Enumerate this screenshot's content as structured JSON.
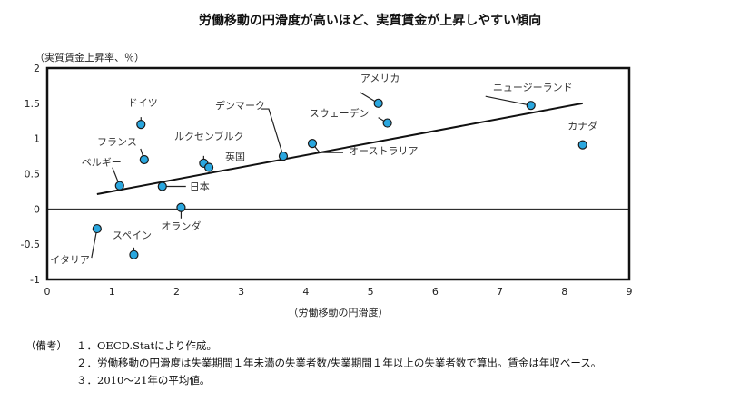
{
  "chart_data": {
    "type": "scatter",
    "title": "労働移動の円滑度が高いほど、実質賃金が上昇しやすい傾向",
    "ylabel": "（実質賃金上昇率、％）",
    "xlabel": "（労働移動の円滑度）",
    "xlim": [
      0,
      9
    ],
    "ylim": [
      -1,
      2
    ],
    "x_ticks": [
      "0",
      "1",
      "2",
      "3",
      "4",
      "5",
      "6",
      "7",
      "8",
      "9"
    ],
    "y_ticks": [
      "-1",
      "-0.5",
      "0",
      "0.5",
      "1",
      "1.5",
      "2"
    ],
    "grid": false,
    "points": [
      {
        "label": "イタリア",
        "x": 0.77,
        "y": -0.28
      },
      {
        "label": "スペイン",
        "x": 1.34,
        "y": -0.65
      },
      {
        "label": "ベルギー",
        "x": 1.12,
        "y": 0.33
      },
      {
        "label": "フランス",
        "x": 1.5,
        "y": 0.7
      },
      {
        "label": "ドイツ",
        "x": 1.45,
        "y": 1.2
      },
      {
        "label": "日本",
        "x": 1.78,
        "y": 0.32
      },
      {
        "label": "オランダ",
        "x": 2.07,
        "y": 0.02
      },
      {
        "label": "ルクセンブルク",
        "x": 2.42,
        "y": 0.65
      },
      {
        "label": "英国",
        "x": 2.5,
        "y": 0.59
      },
      {
        "label": "デンマーク",
        "x": 3.65,
        "y": 0.75
      },
      {
        "label": "オーストラリア",
        "x": 4.1,
        "y": 0.93
      },
      {
        "label": "アメリカ",
        "x": 5.12,
        "y": 1.5
      },
      {
        "label": "スウェーデン",
        "x": 5.26,
        "y": 1.22
      },
      {
        "label": "ニュージーランド",
        "x": 7.48,
        "y": 1.47
      },
      {
        "label": "カナダ",
        "x": 8.28,
        "y": 0.91
      }
    ],
    "trendline": {
      "x": [
        0.77,
        8.28
      ],
      "y": [
        0.21,
        1.5
      ]
    }
  },
  "notes": {
    "head": "（備考）",
    "items": [
      "１．OECD.Statにより作成。",
      "２．労働移動の円滑度は失業期間１年未満の失業者数/失業期間１年以上の失業者数で算出。賃金は年収ベース。",
      "３．2010～21年の平均値。"
    ]
  },
  "colors": {
    "marker": "#2aa7df",
    "marker_stroke": "#1a1a1a",
    "line": "#111111"
  }
}
